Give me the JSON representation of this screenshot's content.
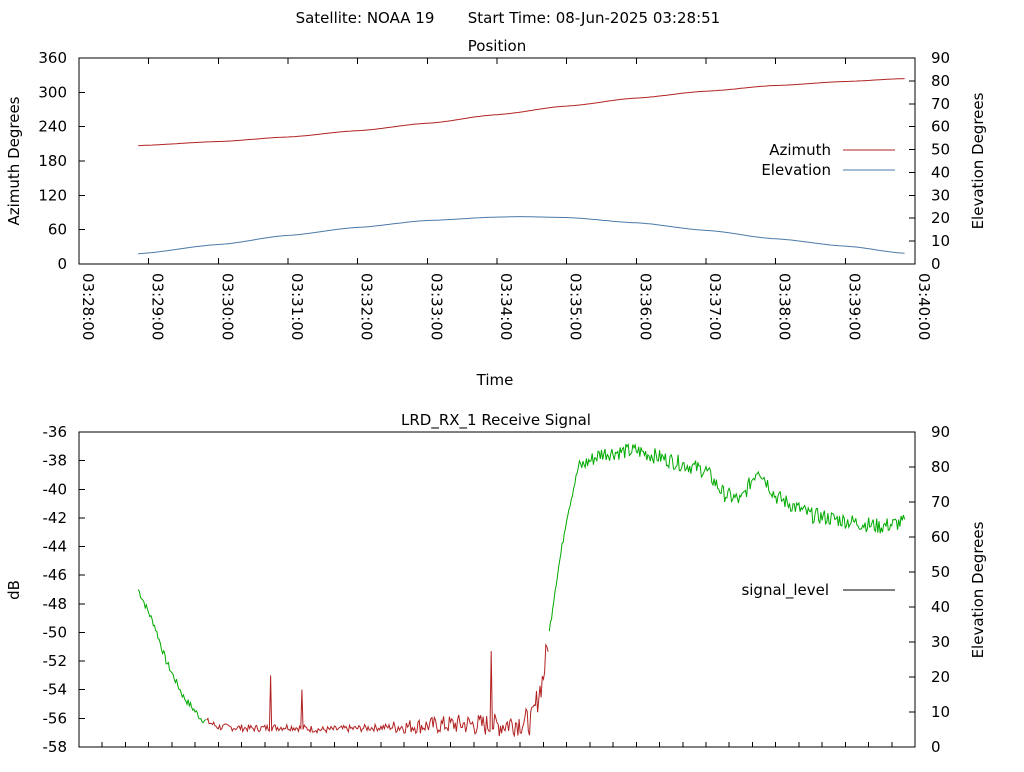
{
  "header": {
    "satellite": "Satellite: NOAA 19",
    "start_time": "Start Time: 08-Jun-2025 03:28:51"
  },
  "chart_data": [
    {
      "type": "line",
      "title": "Position",
      "xlabel": "Time",
      "ylabel": "Azimuth Degrees",
      "y2label": "Elevation Degrees",
      "x_ticks": [
        "03:28:00",
        "03:29:00",
        "03:30:00",
        "03:31:00",
        "03:32:00",
        "03:33:00",
        "03:34:00",
        "03:35:00",
        "03:36:00",
        "03:37:00",
        "03:38:00",
        "03:39:00",
        "03:40:00"
      ],
      "ylim": [
        0,
        360
      ],
      "y_ticks": [
        0,
        60,
        120,
        180,
        240,
        300,
        360
      ],
      "y2lim": [
        0,
        90
      ],
      "y2_ticks": [
        0,
        10,
        20,
        30,
        40,
        50,
        60,
        70,
        80,
        90
      ],
      "legend": "right",
      "series": [
        {
          "name": "Azimuth",
          "axis": "y",
          "color": "#b22222",
          "x": [
            "03:28:51",
            "03:30:00",
            "03:31:00",
            "03:32:00",
            "03:33:00",
            "03:34:00",
            "03:35:00",
            "03:36:00",
            "03:37:00",
            "03:38:00",
            "03:39:00",
            "03:39:51"
          ],
          "values": [
            207,
            214,
            222,
            233,
            246,
            261,
            276,
            290,
            302,
            312,
            319,
            324
          ]
        },
        {
          "name": "Elevation",
          "axis": "y2",
          "color": "#4a7aa8",
          "x": [
            "03:28:51",
            "03:30:00",
            "03:31:00",
            "03:32:00",
            "03:33:00",
            "03:34:00",
            "03:34:20",
            "03:35:00",
            "03:36:00",
            "03:37:00",
            "03:38:00",
            "03:39:00",
            "03:39:51"
          ],
          "values": [
            4.5,
            8.5,
            12.5,
            16,
            19,
            20.5,
            20.7,
            20.3,
            18,
            14.7,
            11,
            7.8,
            4.7
          ]
        }
      ]
    },
    {
      "type": "line",
      "title": "LRD_RX_1 Receive Signal",
      "ylabel": "dB",
      "y2label": "Elevation Degrees",
      "ylim": [
        -58,
        -36
      ],
      "y_ticks": [
        -58,
        -56,
        -54,
        -52,
        -50,
        -48,
        -46,
        -44,
        -42,
        -40,
        -38,
        -36
      ],
      "y2lim": [
        0,
        90
      ],
      "y2_ticks": [
        0,
        10,
        20,
        30,
        40,
        50,
        60,
        70,
        80,
        90
      ],
      "xlim": [
        "03:28:00",
        "03:40:00"
      ],
      "x_minor_ticks_seconds": 20,
      "legend": "right",
      "series": [
        {
          "name": "signal_level",
          "color": "#00aa00",
          "low_color": "#b22222",
          "x": [
            "03:28:51",
            "03:29:05",
            "03:29:15",
            "03:29:30",
            "03:29:45",
            "03:30:00",
            "03:30:30",
            "03:31:00",
            "03:31:30",
            "03:32:00",
            "03:32:30",
            "03:33:00",
            "03:33:30",
            "03:34:00",
            "03:34:15",
            "03:34:30",
            "03:34:40",
            "03:34:50",
            "03:35:00",
            "03:35:10",
            "03:35:30",
            "03:36:00",
            "03:36:30",
            "03:37:00",
            "03:37:15",
            "03:37:30",
            "03:37:45",
            "03:38:00",
            "03:38:30",
            "03:39:00",
            "03:39:30",
            "03:39:51"
          ],
          "values": [
            -47,
            -49.5,
            -52,
            -54.5,
            -56,
            -56.6,
            -56.7,
            -56.6,
            -56.8,
            -56.7,
            -56.6,
            -56.5,
            -56.4,
            -56.5,
            -56.3,
            -56.2,
            -53,
            -47,
            -42,
            -38.5,
            -37.5,
            -37.3,
            -38,
            -38.7,
            -40.3,
            -40.8,
            -38.5,
            -40.5,
            -41.8,
            -42.2,
            -42.6,
            -42.3
          ]
        }
      ],
      "spikes": [
        {
          "x": "03:30:45",
          "value": -53
        },
        {
          "x": "03:31:12",
          "value": -54
        },
        {
          "x": "03:33:55",
          "value": -51.3
        }
      ]
    }
  ]
}
